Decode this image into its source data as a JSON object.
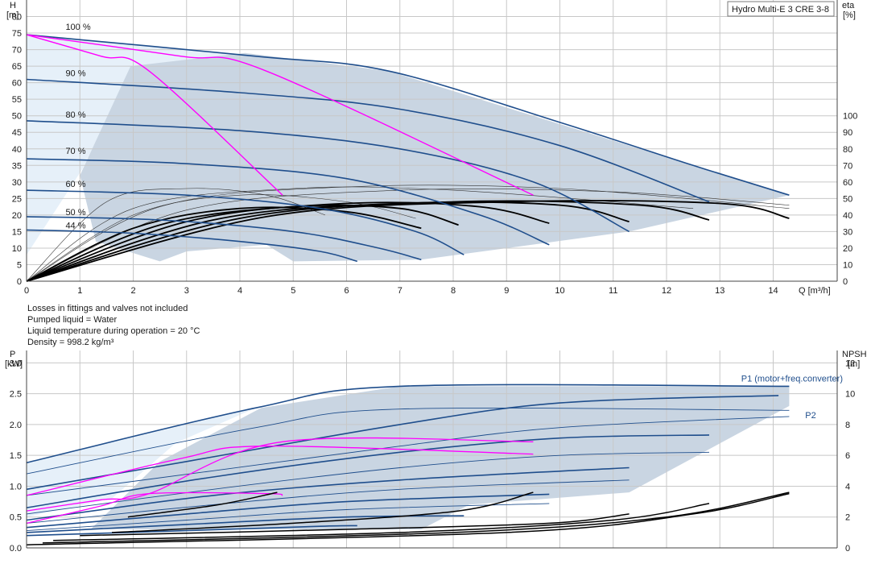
{
  "header": {
    "product_label": "Hydro Multi-E 3 CRE 3-8"
  },
  "notes": [
    "Losses in fittings and valves not included",
    "Pumped liquid = Water",
    "Liquid temperature during operation = 20 °C",
    "Density = 998.2 kg/m³"
  ],
  "colors": {
    "curve": "#1f4e8c",
    "efficiency": "#000000",
    "system": "#ff00ff",
    "envelope_dark": "#c9d5e2",
    "envelope_light": "#e6f0f9",
    "grid": "#c8c8c8"
  },
  "chart_data": [
    {
      "type": "line",
      "name": "head",
      "xlabel": "Q [m³/h]",
      "ylabel_left": "H",
      "ylabel_left_unit": "[m]",
      "ylabel_right": "eta",
      "ylabel_right_unit": "[%]",
      "xlim": [
        0,
        15.2
      ],
      "ylim": [
        0,
        85
      ],
      "xticks": [
        0,
        1,
        2,
        3,
        4,
        5,
        6,
        7,
        8,
        9,
        10,
        11,
        12,
        13,
        14
      ],
      "yticks": [
        0,
        5,
        10,
        15,
        20,
        25,
        30,
        35,
        40,
        45,
        50,
        55,
        60,
        65,
        70,
        75,
        80
      ],
      "right_ticks": [
        0,
        10,
        20,
        30,
        40,
        50,
        60,
        70,
        80,
        90,
        100
      ],
      "right_scale_max_at_h": 50,
      "grid": true,
      "speed_labels": [
        {
          "text": "100 %",
          "q": 0.55,
          "h": 76
        },
        {
          "text": "90 %",
          "q": 0.55,
          "h": 62
        },
        {
          "text": "80 %",
          "q": 0.55,
          "h": 49.5
        },
        {
          "text": "70 %",
          "q": 0.55,
          "h": 38.5
        },
        {
          "text": "60 %",
          "q": 0.55,
          "h": 28.5
        },
        {
          "text": "50 %",
          "q": 0.55,
          "h": 20
        },
        {
          "text": "44 %",
          "q": 0.55,
          "h": 16
        }
      ],
      "envelope": [
        [
          1.0,
          32
        ],
        [
          1.95,
          65
        ],
        [
          4.1,
          69
        ],
        [
          6.8,
          63.5
        ],
        [
          14.3,
          26
        ],
        [
          11.3,
          15
        ],
        [
          7.4,
          6.5
        ],
        [
          5.0,
          6
        ],
        [
          4.5,
          11
        ],
        [
          3.0,
          9
        ],
        [
          2.5,
          6
        ],
        [
          1.3,
          12
        ]
      ],
      "envelope_light": [
        [
          0,
          74.5
        ],
        [
          4.3,
          68
        ],
        [
          1.9,
          62
        ],
        [
          1.05,
          34
        ],
        [
          0,
          8
        ]
      ],
      "curves": [
        {
          "speed": "100%",
          "x": [
            0,
            4.3,
            6.8,
            10,
            12.5,
            14.3
          ],
          "y": [
            74.5,
            68,
            63.5,
            48,
            35,
            26
          ]
        },
        {
          "speed": "90%",
          "x": [
            0,
            4,
            7,
            10,
            12.8
          ],
          "y": [
            61,
            57,
            52,
            41,
            24
          ]
        },
        {
          "speed": "80%",
          "x": [
            0,
            4,
            7,
            9.5,
            11.3
          ],
          "y": [
            48.5,
            45.5,
            40,
            30,
            15
          ]
        },
        {
          "speed": "70%",
          "x": [
            0,
            3,
            6,
            8.5,
            9.8
          ],
          "y": [
            37,
            35.5,
            31,
            20,
            11
          ]
        },
        {
          "speed": "60%",
          "x": [
            0,
            3,
            5.5,
            7.3,
            8.2
          ],
          "y": [
            27.5,
            26,
            22,
            15,
            8
          ]
        },
        {
          "speed": "50%",
          "x": [
            0,
            2.5,
            5,
            6.6,
            7.4
          ],
          "y": [
            19.5,
            18.5,
            15,
            10,
            6.5
          ]
        },
        {
          "speed": "44%",
          "x": [
            0,
            2,
            4,
            5.5,
            6.2
          ],
          "y": [
            15.5,
            14.5,
            12,
            9,
            6
          ]
        }
      ],
      "system_curves": [
        {
          "x": [
            0,
            1.4,
            2.3,
            4.8
          ],
          "y": [
            74.5,
            68,
            63.5,
            26
          ]
        },
        {
          "x": [
            0,
            2.9,
            4.5,
            9.5
          ],
          "y": [
            74.5,
            68,
            63.5,
            26
          ]
        }
      ],
      "eta_curves": [
        {
          "x": [
            0,
            2,
            4,
            6,
            7.4
          ],
          "y": [
            0,
            16,
            22,
            21,
            16
          ]
        },
        {
          "x": [
            0,
            2.5,
            5,
            7,
            8.1
          ],
          "y": [
            0,
            17,
            22.5,
            22,
            17
          ]
        },
        {
          "x": [
            0,
            3,
            6,
            8.5,
            9.8
          ],
          "y": [
            0,
            18,
            23.5,
            22.5,
            17.5
          ]
        },
        {
          "x": [
            0,
            3.5,
            7,
            10,
            11.3
          ],
          "y": [
            0,
            18.5,
            23.5,
            23,
            18
          ]
        },
        {
          "x": [
            0,
            4,
            8,
            11.5,
            12.8
          ],
          "y": [
            0,
            19,
            24,
            23,
            18.5
          ]
        },
        {
          "x": [
            0,
            4.5,
            9,
            13,
            14.3
          ],
          "y": [
            0,
            19.5,
            24,
            23.5,
            19
          ]
        }
      ],
      "eta_iso_curves": [
        {
          "x": [
            0,
            2,
            5,
            8,
            12.5
          ],
          "y": [
            0,
            22,
            28,
            27.5,
            22
          ]
        },
        {
          "x": [
            0,
            2.5,
            6,
            10,
            14.3
          ],
          "y": [
            0,
            22.5,
            28.5,
            28,
            22
          ]
        },
        {
          "x": [
            0,
            3,
            7,
            11,
            14.3
          ],
          "y": [
            0,
            21.5,
            27.5,
            27,
            23
          ]
        },
        {
          "x": [
            0,
            1.5,
            3,
            4.5,
            5.6
          ],
          "y": [
            0,
            24,
            28,
            26,
            20
          ]
        },
        {
          "x": [
            0,
            2,
            4,
            6,
            7.3
          ],
          "y": [
            0,
            20,
            26,
            24,
            19
          ]
        }
      ]
    },
    {
      "type": "line",
      "name": "power",
      "ylabel_left": "P",
      "ylabel_left_unit": "[kW]",
      "ylabel_right": "NPSH",
      "ylabel_right_unit": "[m]",
      "xlim": [
        0,
        15.2
      ],
      "ylim": [
        0,
        3.2
      ],
      "yticks": [
        0,
        0.5,
        1.0,
        1.5,
        2.0,
        2.5,
        3.0
      ],
      "ytick_labels": [
        "0.0",
        "0.5",
        "1.0",
        "1.5",
        "2.0",
        "2.5",
        "3.0"
      ],
      "right_ticks": [
        0,
        2,
        4,
        6,
        8,
        10,
        12
      ],
      "right_scale_max_at_p": 3.0,
      "grid": true,
      "series_labels": [
        {
          "text": "P1 (motor+freq.converter)",
          "q": 13.4,
          "p": 2.7
        },
        {
          "text": "P2",
          "q": 14.6,
          "p": 2.1
        }
      ],
      "envelope": [
        [
          1.2,
          0.3
        ],
        [
          2.5,
          1.4
        ],
        [
          4.4,
          2.27
        ],
        [
          7.0,
          2.62
        ],
        [
          14.3,
          2.62
        ],
        [
          14.3,
          2.3
        ],
        [
          11.3,
          0.9
        ],
        [
          8.3,
          0.7
        ],
        [
          7.4,
          0.3
        ],
        [
          1.2,
          0.3
        ]
      ],
      "envelope_light": [
        [
          0,
          1.38
        ],
        [
          4.3,
          2.27
        ],
        [
          2.8,
          1.7
        ],
        [
          1.6,
          0.8
        ],
        [
          0,
          0.5
        ]
      ],
      "p1_curves": [
        {
          "x": [
            0,
            4.3,
            7,
            14.3
          ],
          "y": [
            1.38,
            2.27,
            2.62,
            2.62
          ]
        },
        {
          "x": [
            0,
            3,
            7,
            10,
            14.1
          ],
          "y": [
            0.95,
            1.4,
            2.0,
            2.35,
            2.47
          ]
        },
        {
          "x": [
            0,
            3.5,
            7,
            10,
            12.8
          ],
          "y": [
            0.65,
            1.15,
            1.55,
            1.78,
            1.83
          ]
        },
        {
          "x": [
            0,
            3.5,
            7,
            11.3
          ],
          "y": [
            0.45,
            0.85,
            1.1,
            1.3
          ]
        },
        {
          "x": [
            0,
            3,
            6,
            9.8
          ],
          "y": [
            0.33,
            0.55,
            0.75,
            0.87
          ]
        },
        {
          "x": [
            0,
            3,
            6,
            8.2
          ],
          "y": [
            0.25,
            0.38,
            0.5,
            0.52
          ]
        },
        {
          "x": [
            0,
            3,
            5.5,
            6.2
          ],
          "y": [
            0.2,
            0.28,
            0.35,
            0.36
          ]
        }
      ],
      "p2_curves": [
        {
          "x": [
            0,
            4.3,
            7,
            14.3
          ],
          "y": [
            1.2,
            1.95,
            2.25,
            2.23
          ]
        },
        {
          "x": [
            0,
            3.5,
            7,
            10,
            14.3
          ],
          "y": [
            0.85,
            1.25,
            1.65,
            1.95,
            2.13
          ]
        },
        {
          "x": [
            0,
            3.5,
            7,
            10,
            12.8
          ],
          "y": [
            0.55,
            0.95,
            1.3,
            1.5,
            1.55
          ]
        },
        {
          "x": [
            0,
            3.5,
            7,
            11.3
          ],
          "y": [
            0.4,
            0.7,
            0.95,
            1.1
          ]
        },
        {
          "x": [
            0,
            3,
            6,
            9.8
          ],
          "y": [
            0.28,
            0.45,
            0.62,
            0.72
          ]
        }
      ],
      "system_curves": [
        {
          "x": [
            0,
            1.4,
            2.3,
            4.8,
            9.5
          ],
          "y": [
            0.6,
            0.78,
            0.88,
            1.72,
            1.72
          ]
        },
        {
          "x": [
            0,
            2.9,
            4.5,
            9.5
          ],
          "y": [
            0.85,
            1.45,
            1.65,
            1.52
          ]
        },
        {
          "x": [
            0,
            1.4,
            2.3,
            4.5,
            4.8
          ],
          "y": [
            0.4,
            0.68,
            0.88,
            0.88,
            0.85
          ]
        }
      ],
      "npsh_curves": [
        {
          "x": [
            1.9,
            3.6,
            4.7
          ],
          "y": [
            0.5,
            0.7,
            0.9
          ]
        },
        {
          "x": [
            1.6,
            5.0,
            8.1,
            9.5
          ],
          "y": [
            0.25,
            0.4,
            0.6,
            0.9
          ]
        },
        {
          "x": [
            1.0,
            6.0,
            9.8,
            11.3
          ],
          "y": [
            0.2,
            0.3,
            0.4,
            0.55
          ]
        },
        {
          "x": [
            0.5,
            7.0,
            11.0,
            12.8
          ],
          "y": [
            0.12,
            0.25,
            0.45,
            0.72
          ]
        },
        {
          "x": [
            0.3,
            8.0,
            12.0,
            14.3
          ],
          "y": [
            0.08,
            0.25,
            0.5,
            0.9
          ]
        },
        {
          "x": [
            0,
            9.0,
            12.5,
            14.3
          ],
          "y": [
            0.05,
            0.25,
            0.55,
            0.88
          ]
        }
      ]
    }
  ]
}
